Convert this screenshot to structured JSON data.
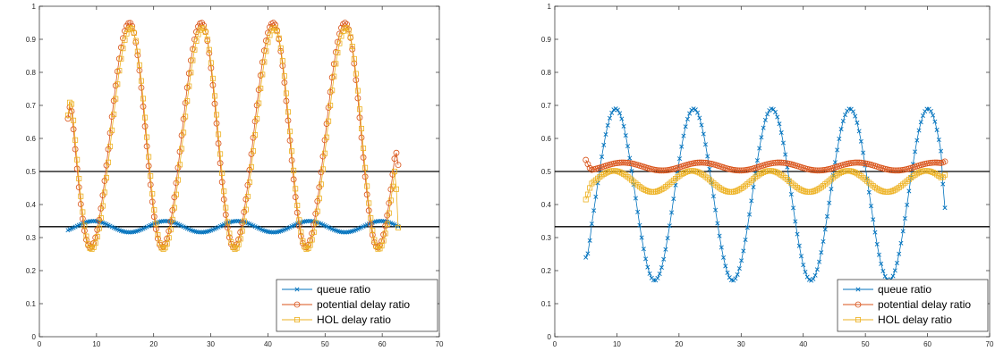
{
  "chart_data": [
    {
      "type": "line",
      "xlim": [
        0,
        70
      ],
      "ylim": [
        0,
        1
      ],
      "xticks": [
        "0",
        "10",
        "20",
        "30",
        "40",
        "50",
        "60",
        "70"
      ],
      "yticks": [
        "0",
        "0.1",
        "0.2",
        "0.3",
        "0.4",
        "0.5",
        "0.6",
        "0.7",
        "0.8",
        "0.9",
        "1"
      ],
      "grid": false,
      "legend_position": "bottom-right",
      "reference_lines": [
        0.5,
        0.333
      ],
      "x_range": [
        5,
        62.8
      ],
      "series": [
        {
          "name": "queue ratio",
          "color": "#0072bd",
          "marker": "x",
          "model": {
            "base": 0.333,
            "amp": 0.017,
            "period": 12.57,
            "peak": 9.5
          }
        },
        {
          "name": "potential delay ratio",
          "color": "#d95319",
          "marker": "o",
          "model": {
            "type": "skewed",
            "mid": 0.61,
            "amp": 0.34,
            "period": 12.57,
            "peak": 15.8,
            "skew": 0.45,
            "start": 0.66,
            "end": 0.52
          }
        },
        {
          "name": "HOL delay ratio",
          "color": "#edb120",
          "marker": "s",
          "model": {
            "type": "skewed",
            "mid": 0.6,
            "amp": 0.335,
            "period": 12.57,
            "peak": 16.0,
            "skew": 0.45,
            "start": 0.67,
            "end": 0.33
          }
        }
      ]
    },
    {
      "type": "line",
      "xlim": [
        0,
        70
      ],
      "ylim": [
        0,
        1
      ],
      "xticks": [
        "0",
        "10",
        "20",
        "30",
        "40",
        "50",
        "60",
        "70"
      ],
      "yticks": [
        "0",
        "0.1",
        "0.2",
        "0.3",
        "0.4",
        "0.5",
        "0.6",
        "0.7",
        "0.8",
        "0.9",
        "1"
      ],
      "grid": false,
      "legend_position": "bottom-right",
      "reference_lines": [
        0.5,
        0.333
      ],
      "x_range": [
        5,
        62.8
      ],
      "series": [
        {
          "name": "queue ratio",
          "color": "#0072bd",
          "marker": "x",
          "model": {
            "type": "cos",
            "base": 0.43,
            "amp": 0.26,
            "period": 12.57,
            "peak": 9.8,
            "start": 0.24,
            "end": 0.39
          }
        },
        {
          "name": "potential delay ratio",
          "color": "#d95319",
          "marker": "o",
          "model": {
            "type": "cos",
            "base": 0.515,
            "amp": 0.012,
            "period": 12.57,
            "peak": 11.0,
            "start": 0.535,
            "end": 0.53
          }
        },
        {
          "name": "HOL delay ratio",
          "color": "#edb120",
          "marker": "s",
          "model": {
            "type": "cos",
            "base": 0.47,
            "amp": 0.032,
            "period": 12.57,
            "peak": 9.5,
            "start": 0.415,
            "end": 0.49
          }
        }
      ]
    }
  ]
}
